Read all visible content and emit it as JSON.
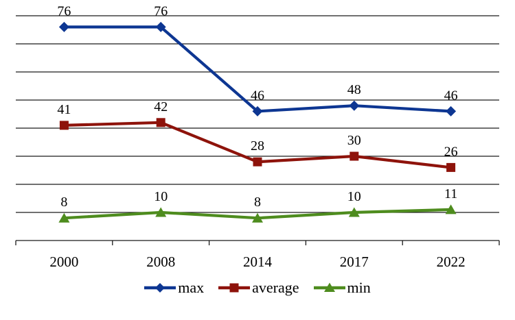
{
  "chart_data": {
    "type": "line",
    "title": "",
    "xlabel": "",
    "ylabel": "",
    "categories": [
      "2000",
      "2008",
      "2014",
      "2017",
      "2022"
    ],
    "series": [
      {
        "name": "max",
        "values": [
          76,
          76,
          46,
          48,
          46
        ],
        "color": "#0d3692",
        "marker": "diamond"
      },
      {
        "name": "average",
        "values": [
          41,
          42,
          28,
          30,
          26
        ],
        "color": "#8e130b",
        "marker": "square"
      },
      {
        "name": "min",
        "values": [
          8,
          10,
          8,
          10,
          11
        ],
        "color": "#4e8c1e",
        "marker": "triangle"
      }
    ],
    "ylim": [
      0,
      80
    ],
    "grid_step": 10,
    "grid_on": true,
    "y_tick_labels_shown": false,
    "data_labels_shown": true,
    "legend_position": "bottom",
    "grid_color": "#1a1a1a",
    "label_color": "#000000",
    "background_color": "#ffffff"
  },
  "legend": {
    "items": [
      "max",
      "average",
      "min"
    ]
  }
}
